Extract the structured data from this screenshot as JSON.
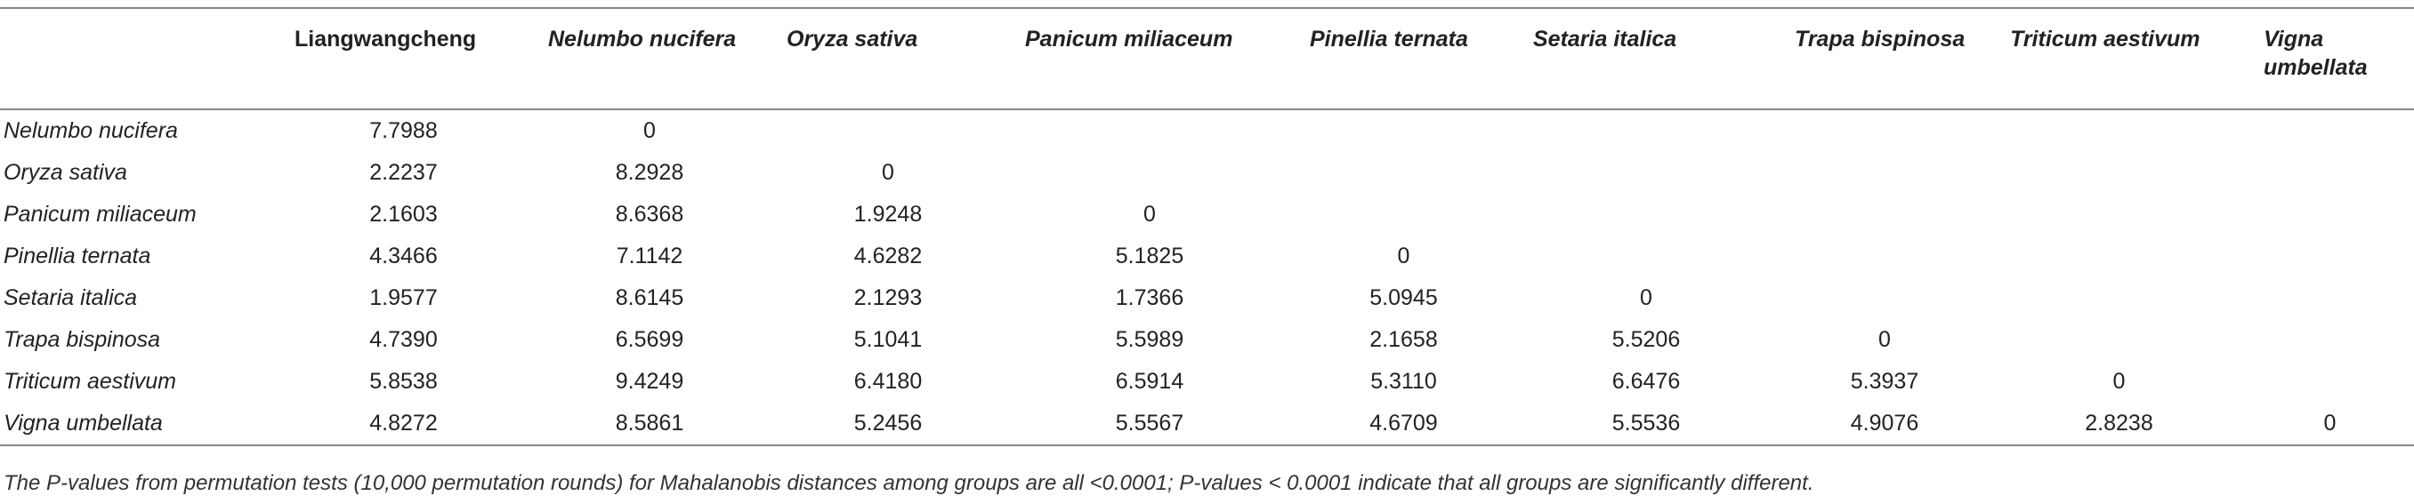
{
  "table": {
    "columns": [
      "Liangwangcheng",
      "Nelumbo nucifera",
      "Oryza sativa",
      "Panicum miliaceum",
      "Pinellia ternata",
      "Setaria italica",
      "Trapa bispinosa",
      "Triticum aestivum",
      "Vigna umbellata"
    ],
    "rows": [
      {
        "label": "Nelumbo nucifera",
        "values": [
          "7.7988",
          "0"
        ]
      },
      {
        "label": "Oryza sativa",
        "values": [
          "2.2237",
          "8.2928",
          "0"
        ]
      },
      {
        "label": "Panicum miliaceum",
        "values": [
          "2.1603",
          "8.6368",
          "1.9248",
          "0"
        ]
      },
      {
        "label": "Pinellia ternata",
        "values": [
          "4.3466",
          "7.1142",
          "4.6282",
          "5.1825",
          "0"
        ]
      },
      {
        "label": "Setaria italica",
        "values": [
          "1.9577",
          "8.6145",
          "2.1293",
          "1.7366",
          "5.0945",
          "0"
        ]
      },
      {
        "label": "Trapa bispinosa",
        "values": [
          "4.7390",
          "6.5699",
          "5.1041",
          "5.5989",
          "2.1658",
          "5.5206",
          "0"
        ]
      },
      {
        "label": "Triticum aestivum",
        "values": [
          "5.8538",
          "9.4249",
          "6.4180",
          "6.5914",
          "5.3110",
          "6.6476",
          "5.3937",
          "0"
        ]
      },
      {
        "label": "Vigna umbellata",
        "values": [
          "4.8272",
          "8.5861",
          "5.2456",
          "5.5567",
          "4.6709",
          "5.5536",
          "4.9076",
          "2.8238",
          "0"
        ]
      }
    ],
    "footnote": "The P-values from permutation tests (10,000 permutation rounds) for Mahalanobis distances among groups are all <0.0001; P-values < 0.0001 indicate that all groups are significantly different."
  }
}
